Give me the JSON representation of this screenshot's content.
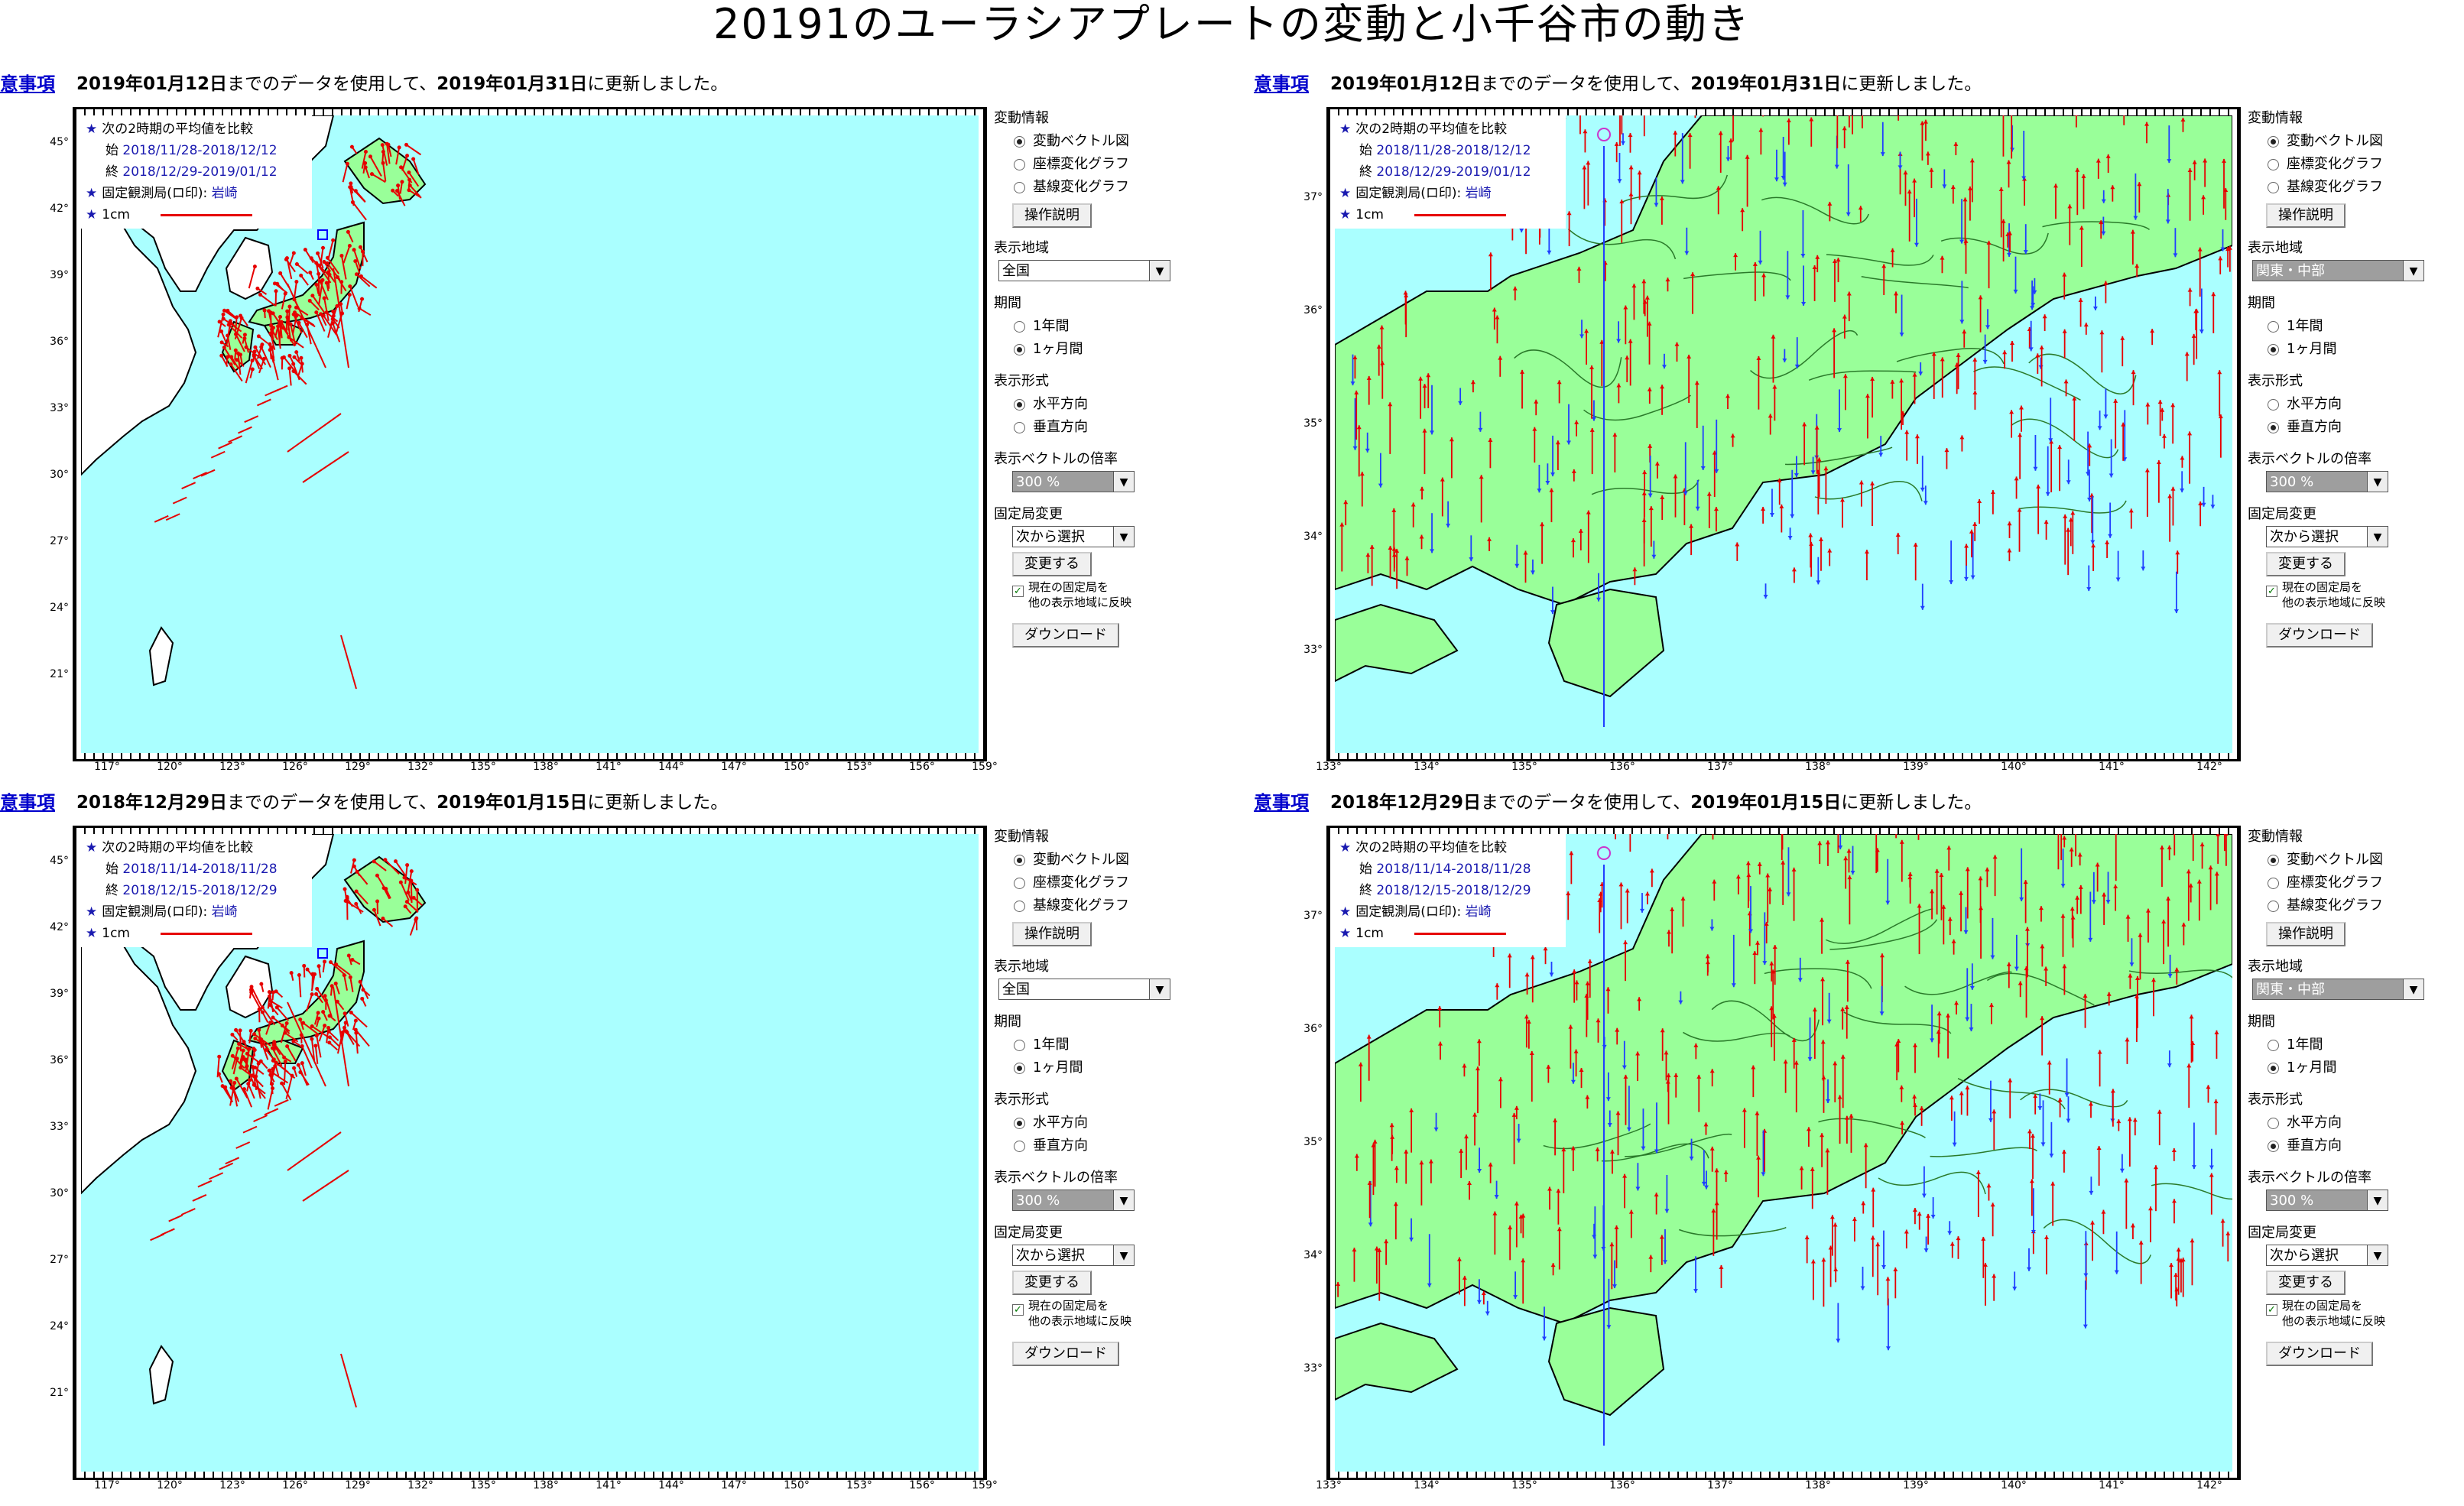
{
  "title": "20191のユーラシアプレートの変動と小千谷市の動き",
  "panels": [
    {
      "caution": "意事項",
      "updated_prefix": "",
      "date1": "2019年01月12日",
      "mid": "までのデータを使用して、",
      "date2": "2019年01月31日",
      "suffix": "に更新しました。",
      "legend": {
        "line1": "次の2時期の平均値を比較",
        "start_label": "始",
        "start": "2018/11/28-2018/12/12",
        "end_label": "終",
        "end": "2018/12/29-2019/01/12",
        "fixed": "固定観測局(ロ印):",
        "fixed_name": "岩崎",
        "scale": "1cm"
      },
      "lat_ticks": [
        "45°",
        "42°",
        "39°",
        "36°",
        "33°",
        "30°",
        "27°",
        "24°",
        "21°"
      ],
      "lon_ticks": [
        "117°",
        "120°",
        "123°",
        "126°",
        "129°",
        "132°",
        "135°",
        "138°",
        "141°",
        "144°",
        "147°",
        "150°",
        "153°",
        "156°",
        "159°"
      ],
      "region": "全国",
      "view": "nation",
      "period_sel": 1,
      "format_sel": 0
    },
    {
      "caution": "意事項",
      "date1": "2019年01月12日",
      "mid": "までのデータを使用して、",
      "date2": "2019年01月31日",
      "suffix": "に更新しました。",
      "legend": {
        "line1": "次の2時期の平均値を比較",
        "start_label": "始",
        "start": "2018/11/28-2018/12/12",
        "end_label": "終",
        "end": "2018/12/29-2019/01/12",
        "fixed": "固定観測局(ロ印):",
        "fixed_name": "岩崎",
        "scale": "1cm"
      },
      "lat_ticks": [
        "37°",
        "36°",
        "35°",
        "34°",
        "33°"
      ],
      "lon_ticks": [
        "133°",
        "134°",
        "135°",
        "136°",
        "137°",
        "138°",
        "139°",
        "140°",
        "141°",
        "142°"
      ],
      "region": "関東・中部",
      "view": "kanto",
      "period_sel": 1,
      "format_sel": 1
    },
    {
      "caution": "意事項",
      "date1": "2018年12月29日",
      "mid": "までのデータを使用して、",
      "date2": "2019年01月15日",
      "suffix": "に更新しました。",
      "legend": {
        "line1": "次の2時期の平均値を比較",
        "start_label": "始",
        "start": "2018/11/14-2018/11/28",
        "end_label": "終",
        "end": "2018/12/15-2018/12/29",
        "fixed": "固定観測局(ロ印):",
        "fixed_name": "岩崎",
        "scale": "1cm"
      },
      "lat_ticks": [
        "45°",
        "42°",
        "39°",
        "36°",
        "33°",
        "30°",
        "27°",
        "24°",
        "21°"
      ],
      "lon_ticks": [
        "117°",
        "120°",
        "123°",
        "126°",
        "129°",
        "132°",
        "135°",
        "138°",
        "141°",
        "144°",
        "147°",
        "150°",
        "153°",
        "156°",
        "159°"
      ],
      "region": "全国",
      "view": "nation",
      "period_sel": 1,
      "format_sel": 0
    },
    {
      "caution": "意事項",
      "date1": "2018年12月29日",
      "mid": "までのデータを使用して、",
      "date2": "2019年01月15日",
      "suffix": "に更新しました。",
      "legend": {
        "line1": "次の2時期の平均値を比較",
        "start_label": "始",
        "start": "2018/11/14-2018/11/28",
        "end_label": "終",
        "end": "2018/12/15-2018/12/29",
        "fixed": "固定観測局(ロ印):",
        "fixed_name": "岩崎",
        "scale": "1cm"
      },
      "lat_ticks": [
        "37°",
        "36°",
        "35°",
        "34°",
        "33°"
      ],
      "lon_ticks": [
        "133°",
        "134°",
        "135°",
        "136°",
        "137°",
        "138°",
        "139°",
        "140°",
        "141°",
        "142°"
      ],
      "region": "関東・中部",
      "view": "kanto",
      "period_sel": 1,
      "format_sel": 1
    }
  ],
  "controls": {
    "info_label": "変動情報",
    "info_options": [
      "変動ベクトル図",
      "座標変化グラフ",
      "基線変化グラフ"
    ],
    "help_button": "操作説明",
    "region_label": "表示地域",
    "period_label": "期間",
    "period_options": [
      "1年間",
      "1ヶ月間"
    ],
    "format_label": "表示形式",
    "format_options": [
      "水平方向",
      "垂直方向"
    ],
    "scale_label": "表示ベクトルの倍率",
    "scale_value": "300 %",
    "fixed_label": "固定局変更",
    "fixed_select": "次から選択",
    "change_button": "変更する",
    "check_text_1": "現在の固定局を",
    "check_text_2": "他の表示地域に反映",
    "download_button": "ダウンロード"
  },
  "colors": {
    "sea": "#aaffff",
    "land": "#99ff99",
    "vector_up": "#e60000",
    "vector_down": "#1f3fff"
  }
}
